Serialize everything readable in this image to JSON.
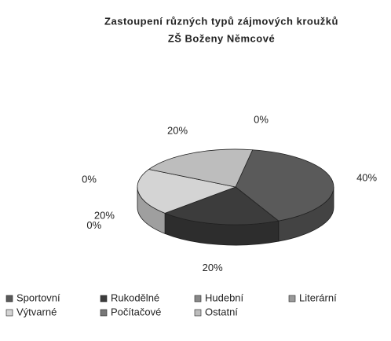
{
  "chart_data": {
    "type": "pie",
    "title": "Zastoupení různých typů zájmových kroužků",
    "subtitle": "ZŠ Boženy Němcové",
    "categories": [
      "Sportovní",
      "Rukodělné",
      "Hudební",
      "Literární",
      "Výtvarné",
      "Počítačové",
      "Ostatní"
    ],
    "values": [
      40,
      20,
      0,
      0,
      20,
      0,
      20
    ],
    "value_labels": [
      "40%",
      "20%",
      "0%",
      "0%",
      "20%",
      "0%",
      "20%"
    ],
    "colors": [
      "#5a5a5a",
      "#3c3c3c",
      "#888888",
      "#999999",
      "#d4d4d4",
      "#777777",
      "#bdbdbd"
    ]
  }
}
